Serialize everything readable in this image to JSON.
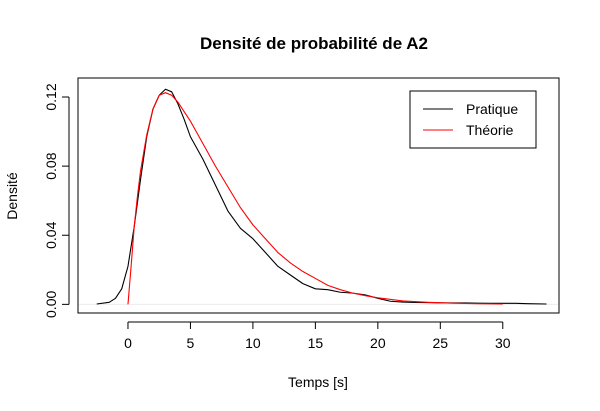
{
  "chart_data": {
    "type": "line",
    "title": "Densité de probabilité de A2",
    "xlabel": "Temps [s]",
    "ylabel": "Densité",
    "xlim": [
      -4,
      34.5
    ],
    "ylim": [
      -0.005,
      0.131
    ],
    "xticks": [
      0,
      5,
      10,
      15,
      20,
      25,
      30
    ],
    "yticks": [
      0.0,
      0.04,
      0.08,
      0.12
    ],
    "ytick_labels": [
      "0.00",
      "0.04",
      "0.08",
      "0.12"
    ],
    "grid": false,
    "legend_position": "top-right",
    "series": [
      {
        "name": "Pratique",
        "color": "#000000",
        "x": [
          -2.5,
          -1.5,
          -1.0,
          -0.5,
          0.0,
          0.5,
          1.0,
          1.5,
          2.0,
          2.5,
          3.0,
          3.5,
          4.0,
          4.5,
          5.0,
          6.0,
          7.0,
          8.0,
          9.0,
          10.0,
          11.0,
          12.0,
          13.0,
          14.0,
          15.0,
          16.0,
          17.0,
          18.0,
          19.0,
          20.0,
          21.0,
          22.0,
          23.0,
          24.0,
          25.0,
          26.0,
          27.0,
          28.0,
          29.0,
          30.0,
          31.0,
          32.0,
          33.5
        ],
        "y": [
          0.0002,
          0.0012,
          0.0035,
          0.009,
          0.022,
          0.045,
          0.072,
          0.097,
          0.113,
          0.121,
          0.1245,
          0.123,
          0.116,
          0.107,
          0.097,
          0.084,
          0.069,
          0.054,
          0.044,
          0.038,
          0.03,
          0.022,
          0.017,
          0.012,
          0.009,
          0.0085,
          0.007,
          0.0065,
          0.0055,
          0.0035,
          0.0018,
          0.0013,
          0.0011,
          0.001,
          0.0009,
          0.0008,
          0.0008,
          0.0007,
          0.0006,
          0.0006,
          0.0006,
          0.0004,
          0.0002
        ]
      },
      {
        "name": "Théorie",
        "color": "#ff0000",
        "x": [
          0.0,
          0.25,
          0.5,
          0.75,
          1.0,
          1.5,
          2.0,
          2.5,
          3.0,
          3.5,
          4.0,
          5.0,
          6.0,
          7.0,
          8.0,
          9.0,
          10.0,
          11.0,
          12.0,
          13.0,
          14.0,
          15.0,
          16.0,
          17.0,
          18.0,
          19.0,
          20.0,
          22.0,
          24.0,
          26.0,
          28.0,
          30.0
        ],
        "y": [
          0.0,
          0.022,
          0.045,
          0.062,
          0.077,
          0.098,
          0.113,
          0.121,
          0.1225,
          0.121,
          0.117,
          0.106,
          0.093,
          0.08,
          0.068,
          0.056,
          0.046,
          0.038,
          0.03,
          0.024,
          0.019,
          0.015,
          0.011,
          0.0085,
          0.0065,
          0.005,
          0.0038,
          0.002,
          0.0012,
          0.0007,
          0.0004,
          0.0002
        ]
      }
    ]
  }
}
